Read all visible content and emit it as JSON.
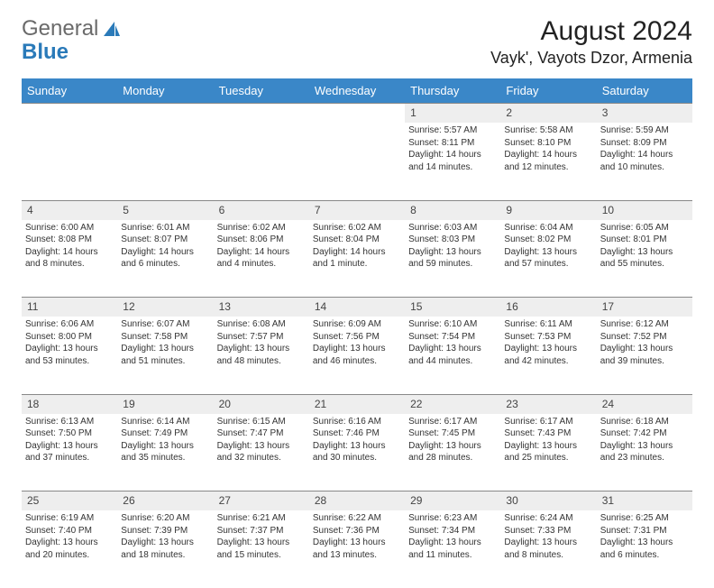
{
  "logo": {
    "text1": "General",
    "text2": "Blue"
  },
  "title": "August 2024",
  "location": "Vayk', Vayots Dzor, Armenia",
  "colors": {
    "header_bg": "#3a87c8",
    "header_fg": "#ffffff",
    "daynum_bg": "#eeeeee",
    "border": "#888888",
    "logo_gray": "#6a6a6a",
    "logo_blue": "#2a7ab9"
  },
  "weekdays": [
    "Sunday",
    "Monday",
    "Tuesday",
    "Wednesday",
    "Thursday",
    "Friday",
    "Saturday"
  ],
  "weeks": [
    [
      null,
      null,
      null,
      null,
      {
        "n": "1",
        "sunrise": "Sunrise: 5:57 AM",
        "sunset": "Sunset: 8:11 PM",
        "day1": "Daylight: 14 hours",
        "day2": "and 14 minutes."
      },
      {
        "n": "2",
        "sunrise": "Sunrise: 5:58 AM",
        "sunset": "Sunset: 8:10 PM",
        "day1": "Daylight: 14 hours",
        "day2": "and 12 minutes."
      },
      {
        "n": "3",
        "sunrise": "Sunrise: 5:59 AM",
        "sunset": "Sunset: 8:09 PM",
        "day1": "Daylight: 14 hours",
        "day2": "and 10 minutes."
      }
    ],
    [
      {
        "n": "4",
        "sunrise": "Sunrise: 6:00 AM",
        "sunset": "Sunset: 8:08 PM",
        "day1": "Daylight: 14 hours",
        "day2": "and 8 minutes."
      },
      {
        "n": "5",
        "sunrise": "Sunrise: 6:01 AM",
        "sunset": "Sunset: 8:07 PM",
        "day1": "Daylight: 14 hours",
        "day2": "and 6 minutes."
      },
      {
        "n": "6",
        "sunrise": "Sunrise: 6:02 AM",
        "sunset": "Sunset: 8:06 PM",
        "day1": "Daylight: 14 hours",
        "day2": "and 4 minutes."
      },
      {
        "n": "7",
        "sunrise": "Sunrise: 6:02 AM",
        "sunset": "Sunset: 8:04 PM",
        "day1": "Daylight: 14 hours",
        "day2": "and 1 minute."
      },
      {
        "n": "8",
        "sunrise": "Sunrise: 6:03 AM",
        "sunset": "Sunset: 8:03 PM",
        "day1": "Daylight: 13 hours",
        "day2": "and 59 minutes."
      },
      {
        "n": "9",
        "sunrise": "Sunrise: 6:04 AM",
        "sunset": "Sunset: 8:02 PM",
        "day1": "Daylight: 13 hours",
        "day2": "and 57 minutes."
      },
      {
        "n": "10",
        "sunrise": "Sunrise: 6:05 AM",
        "sunset": "Sunset: 8:01 PM",
        "day1": "Daylight: 13 hours",
        "day2": "and 55 minutes."
      }
    ],
    [
      {
        "n": "11",
        "sunrise": "Sunrise: 6:06 AM",
        "sunset": "Sunset: 8:00 PM",
        "day1": "Daylight: 13 hours",
        "day2": "and 53 minutes."
      },
      {
        "n": "12",
        "sunrise": "Sunrise: 6:07 AM",
        "sunset": "Sunset: 7:58 PM",
        "day1": "Daylight: 13 hours",
        "day2": "and 51 minutes."
      },
      {
        "n": "13",
        "sunrise": "Sunrise: 6:08 AM",
        "sunset": "Sunset: 7:57 PM",
        "day1": "Daylight: 13 hours",
        "day2": "and 48 minutes."
      },
      {
        "n": "14",
        "sunrise": "Sunrise: 6:09 AM",
        "sunset": "Sunset: 7:56 PM",
        "day1": "Daylight: 13 hours",
        "day2": "and 46 minutes."
      },
      {
        "n": "15",
        "sunrise": "Sunrise: 6:10 AM",
        "sunset": "Sunset: 7:54 PM",
        "day1": "Daylight: 13 hours",
        "day2": "and 44 minutes."
      },
      {
        "n": "16",
        "sunrise": "Sunrise: 6:11 AM",
        "sunset": "Sunset: 7:53 PM",
        "day1": "Daylight: 13 hours",
        "day2": "and 42 minutes."
      },
      {
        "n": "17",
        "sunrise": "Sunrise: 6:12 AM",
        "sunset": "Sunset: 7:52 PM",
        "day1": "Daylight: 13 hours",
        "day2": "and 39 minutes."
      }
    ],
    [
      {
        "n": "18",
        "sunrise": "Sunrise: 6:13 AM",
        "sunset": "Sunset: 7:50 PM",
        "day1": "Daylight: 13 hours",
        "day2": "and 37 minutes."
      },
      {
        "n": "19",
        "sunrise": "Sunrise: 6:14 AM",
        "sunset": "Sunset: 7:49 PM",
        "day1": "Daylight: 13 hours",
        "day2": "and 35 minutes."
      },
      {
        "n": "20",
        "sunrise": "Sunrise: 6:15 AM",
        "sunset": "Sunset: 7:47 PM",
        "day1": "Daylight: 13 hours",
        "day2": "and 32 minutes."
      },
      {
        "n": "21",
        "sunrise": "Sunrise: 6:16 AM",
        "sunset": "Sunset: 7:46 PM",
        "day1": "Daylight: 13 hours",
        "day2": "and 30 minutes."
      },
      {
        "n": "22",
        "sunrise": "Sunrise: 6:17 AM",
        "sunset": "Sunset: 7:45 PM",
        "day1": "Daylight: 13 hours",
        "day2": "and 28 minutes."
      },
      {
        "n": "23",
        "sunrise": "Sunrise: 6:17 AM",
        "sunset": "Sunset: 7:43 PM",
        "day1": "Daylight: 13 hours",
        "day2": "and 25 minutes."
      },
      {
        "n": "24",
        "sunrise": "Sunrise: 6:18 AM",
        "sunset": "Sunset: 7:42 PM",
        "day1": "Daylight: 13 hours",
        "day2": "and 23 minutes."
      }
    ],
    [
      {
        "n": "25",
        "sunrise": "Sunrise: 6:19 AM",
        "sunset": "Sunset: 7:40 PM",
        "day1": "Daylight: 13 hours",
        "day2": "and 20 minutes."
      },
      {
        "n": "26",
        "sunrise": "Sunrise: 6:20 AM",
        "sunset": "Sunset: 7:39 PM",
        "day1": "Daylight: 13 hours",
        "day2": "and 18 minutes."
      },
      {
        "n": "27",
        "sunrise": "Sunrise: 6:21 AM",
        "sunset": "Sunset: 7:37 PM",
        "day1": "Daylight: 13 hours",
        "day2": "and 15 minutes."
      },
      {
        "n": "28",
        "sunrise": "Sunrise: 6:22 AM",
        "sunset": "Sunset: 7:36 PM",
        "day1": "Daylight: 13 hours",
        "day2": "and 13 minutes."
      },
      {
        "n": "29",
        "sunrise": "Sunrise: 6:23 AM",
        "sunset": "Sunset: 7:34 PM",
        "day1": "Daylight: 13 hours",
        "day2": "and 11 minutes."
      },
      {
        "n": "30",
        "sunrise": "Sunrise: 6:24 AM",
        "sunset": "Sunset: 7:33 PM",
        "day1": "Daylight: 13 hours",
        "day2": "and 8 minutes."
      },
      {
        "n": "31",
        "sunrise": "Sunrise: 6:25 AM",
        "sunset": "Sunset: 7:31 PM",
        "day1": "Daylight: 13 hours",
        "day2": "and 6 minutes."
      }
    ]
  ]
}
